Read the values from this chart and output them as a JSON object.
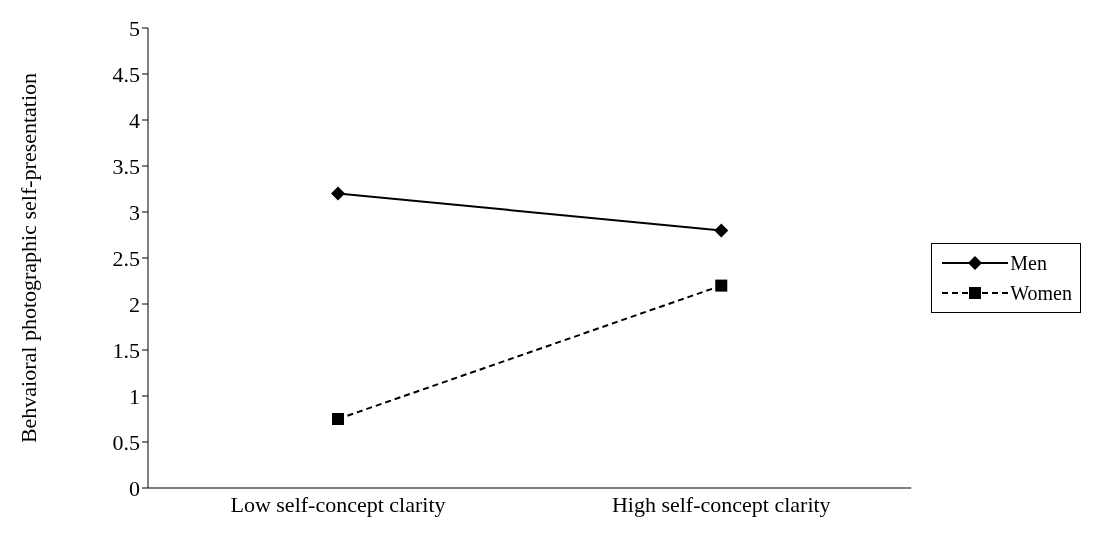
{
  "chart_data": {
    "type": "line",
    "ylabel": "Behvaioral photographic self-presentation",
    "categories": [
      "Low self-concept clarity",
      "High self-concept clarity"
    ],
    "series": [
      {
        "name": "Men",
        "color": "#000000",
        "values": [
          3.2,
          2.8
        ],
        "marker": "diamond",
        "line_style": "solid"
      },
      {
        "name": "Women",
        "color": "#000000",
        "values": [
          0.75,
          2.2
        ],
        "marker": "square",
        "line_style": "dashed"
      }
    ],
    "ylim": [
      0,
      5
    ],
    "yticks": [
      0,
      0.5,
      1,
      1.5,
      2,
      2.5,
      3,
      3.5,
      4,
      4.5,
      5
    ],
    "grid": false,
    "legend": "right"
  }
}
